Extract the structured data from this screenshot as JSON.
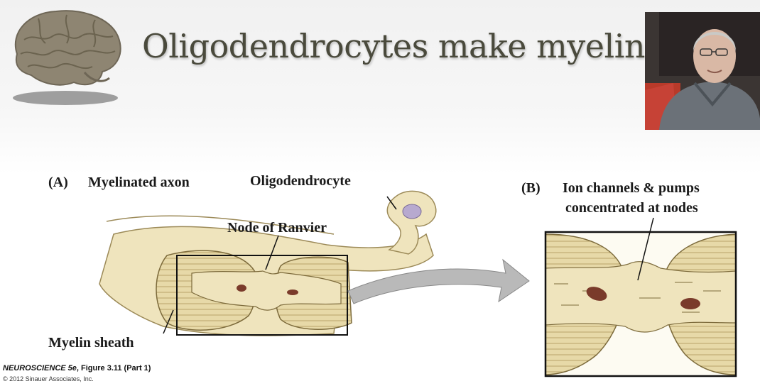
{
  "slide": {
    "title": "Oligodendrocytes make myelin"
  },
  "panel_a": {
    "letter": "(A)",
    "heading": "Myelinated axon",
    "labels": {
      "oligodendrocyte": "Oligodendrocyte",
      "node_of_ranvier": "Node of Ranvier",
      "myelin_sheath": "Myelin sheath"
    }
  },
  "panel_b": {
    "letter": "(B)",
    "heading_line1": "Ion channels & pumps",
    "heading_line2": "concentrated at nodes"
  },
  "credit": {
    "book": "NEUROSCIENCE 5e",
    "figure": ", Figure 3.11 (Part 1)",
    "copyright": "© 2012 Sinauer Associates, Inc."
  },
  "colors": {
    "axon": "#efe4bd",
    "myelin": "#e7d9a8",
    "myelin_lines": "#b8a46a",
    "outline": "#222222",
    "arrow": "#b9b9b9"
  }
}
